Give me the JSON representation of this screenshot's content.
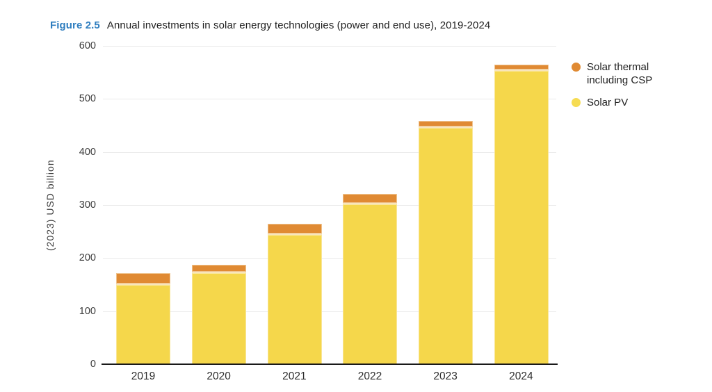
{
  "title": {
    "label": "Figure 2.5",
    "text": "Annual investments in solar energy technologies (power and end use), 2019-2024"
  },
  "colors": {
    "accent_blue": "#2e7dbf",
    "solar_pv": "#f5d74b",
    "solar_thermal": "#e08a33",
    "gridline": "#eaeaea",
    "axis_line": "#1a1a1a"
  },
  "chart_data": {
    "type": "bar",
    "stacked": true,
    "title": "Annual investments in solar energy technologies (power and end use), 2019-2024",
    "categories": [
      "2019",
      "2020",
      "2021",
      "2022",
      "2023",
      "2024"
    ],
    "series": [
      {
        "name": "Solar PV",
        "color": "#f5d74b",
        "values": [
          150,
          172,
          244,
          301,
          446,
          553
        ]
      },
      {
        "name": "Solar thermal including CSP",
        "color": "#e08a33",
        "values": [
          21,
          16,
          20,
          20,
          13,
          12
        ]
      }
    ],
    "totals": [
      171,
      188,
      264,
      321,
      459,
      565
    ],
    "xlabel": "",
    "ylabel": "(2023) USD billion",
    "ylim": [
      0,
      600
    ],
    "yticks": [
      0,
      100,
      200,
      300,
      400,
      500,
      600
    ],
    "grid": "horizontal",
    "legend_position": "right",
    "legend": [
      {
        "label": "Solar thermal including CSP",
        "color": "#e08a33"
      },
      {
        "label": "Solar PV",
        "color": "#f6dc52"
      }
    ]
  }
}
